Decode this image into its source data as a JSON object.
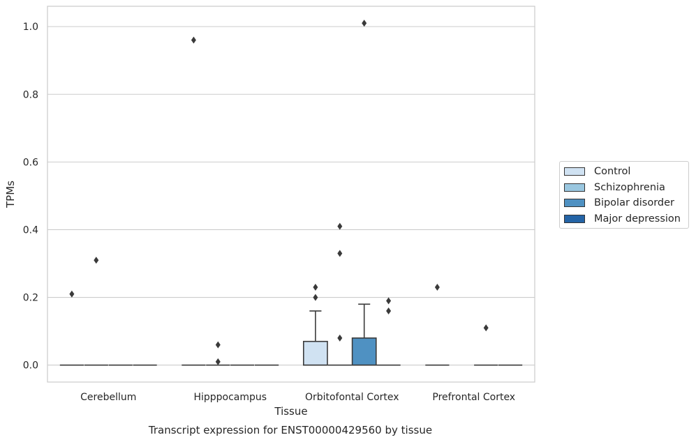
{
  "chart_data": {
    "type": "box",
    "title": "Transcript expression for ENST00000429560 by tissue",
    "xlabel": "Tissue",
    "ylabel": "TPMs",
    "ylim": [
      -0.05,
      1.06
    ],
    "yticks": [
      0.0,
      0.2,
      0.4,
      0.6,
      0.8,
      1.0
    ],
    "ytick_labels": [
      "0.0",
      "0.2",
      "0.4",
      "0.6",
      "0.8",
      "1.0"
    ],
    "grid": true,
    "legend_position": "right",
    "categories": [
      "Cerebellum",
      "Hipppocampus",
      "Orbitofontal Cortex",
      "Prefrontal Cortex"
    ],
    "series": [
      {
        "name": "Control",
        "color": "#d0e2f2",
        "boxes": [
          {
            "q1": 0,
            "median": 0,
            "q3": 0,
            "whisker_low": 0,
            "whisker_high": 0,
            "outliers": [
              0.21
            ]
          },
          {
            "q1": 0,
            "median": 0,
            "q3": 0,
            "whisker_low": 0,
            "whisker_high": 0,
            "outliers": [
              0.96
            ]
          },
          {
            "q1": 0,
            "median": 0,
            "q3": 0.07,
            "whisker_low": 0,
            "whisker_high": 0.16,
            "outliers": [
              0.2,
              0.23
            ]
          },
          {
            "q1": 0,
            "median": 0,
            "q3": 0,
            "whisker_low": 0,
            "whisker_high": 0,
            "outliers": [
              0.23
            ]
          }
        ]
      },
      {
        "name": "Schizophrenia",
        "color": "#9ac7e0",
        "boxes": [
          {
            "q1": 0,
            "median": 0,
            "q3": 0,
            "whisker_low": 0,
            "whisker_high": 0,
            "outliers": [
              0.31
            ]
          },
          {
            "q1": 0,
            "median": 0,
            "q3": 0,
            "whisker_low": 0,
            "whisker_high": 0,
            "outliers": [
              0.01,
              0.06
            ]
          },
          {
            "q1": 0,
            "median": 0,
            "q3": 0,
            "whisker_low": 0,
            "whisker_high": 0,
            "outliers": [
              0.08,
              0.33,
              0.41
            ]
          },
          null
        ]
      },
      {
        "name": "Bipolar disorder",
        "color": "#4f91c2",
        "boxes": [
          {
            "q1": 0,
            "median": 0,
            "q3": 0,
            "whisker_low": 0,
            "whisker_high": 0,
            "outliers": []
          },
          {
            "q1": 0,
            "median": 0,
            "q3": 0,
            "whisker_low": 0,
            "whisker_high": 0,
            "outliers": []
          },
          {
            "q1": 0,
            "median": 0,
            "q3": 0.08,
            "whisker_low": 0,
            "whisker_high": 0.18,
            "outliers": [
              1.01
            ]
          },
          {
            "q1": 0,
            "median": 0,
            "q3": 0,
            "whisker_low": 0,
            "whisker_high": 0,
            "outliers": [
              0.11
            ]
          }
        ]
      },
      {
        "name": "Major depression",
        "color": "#2464a6",
        "boxes": [
          {
            "q1": 0,
            "median": 0,
            "q3": 0,
            "whisker_low": 0,
            "whisker_high": 0,
            "outliers": []
          },
          {
            "q1": 0,
            "median": 0,
            "q3": 0,
            "whisker_low": 0,
            "whisker_high": 0,
            "outliers": []
          },
          {
            "q1": 0,
            "median": 0,
            "q3": 0,
            "whisker_low": 0,
            "whisker_high": 0,
            "outliers": [
              0.16,
              0.19
            ]
          },
          {
            "q1": 0,
            "median": 0,
            "q3": 0,
            "whisker_low": 0,
            "whisker_high": 0,
            "outliers": []
          }
        ]
      }
    ]
  }
}
